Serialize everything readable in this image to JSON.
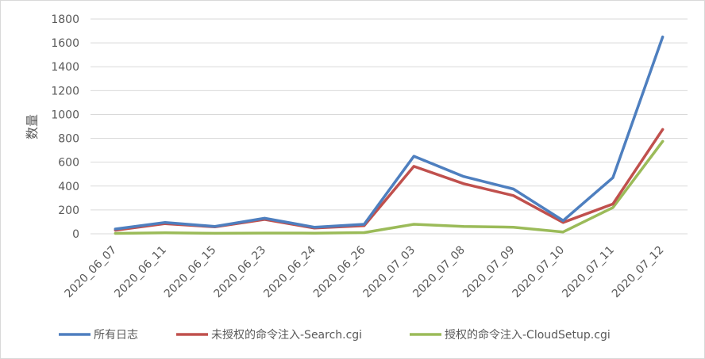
{
  "chart_data": {
    "type": "line",
    "title": "",
    "xlabel": "",
    "ylabel": "数量",
    "ylim": [
      0,
      1800
    ],
    "yticks": [
      0,
      200,
      400,
      600,
      800,
      1000,
      1200,
      1400,
      1600,
      1800
    ],
    "grid": true,
    "legend_position": "bottom",
    "categories": [
      "2020_06_07",
      "2020_06_11",
      "2020_06_15",
      "2020_06_23",
      "2020_06_24",
      "2020_06_26",
      "2020_07_03",
      "2020_07_08",
      "2020_07_09",
      "2020_07_10",
      "2020_07_11",
      "2020_07_12"
    ],
    "series": [
      {
        "name": "所有日志",
        "color": "#4e7fbf",
        "values": [
          40,
          95,
          62,
          130,
          55,
          80,
          650,
          480,
          375,
          110,
          470,
          1650
        ]
      },
      {
        "name": "未授权的命令注入-Search.cgi",
        "color": "#c0504d",
        "values": [
          30,
          85,
          58,
          120,
          48,
          68,
          565,
          420,
          320,
          95,
          250,
          875
        ]
      },
      {
        "name": "授权的命令注入-CloudSetup.cgi",
        "color": "#9bbb59",
        "values": [
          3,
          8,
          4,
          6,
          5,
          10,
          80,
          62,
          55,
          15,
          220,
          775
        ]
      }
    ]
  }
}
